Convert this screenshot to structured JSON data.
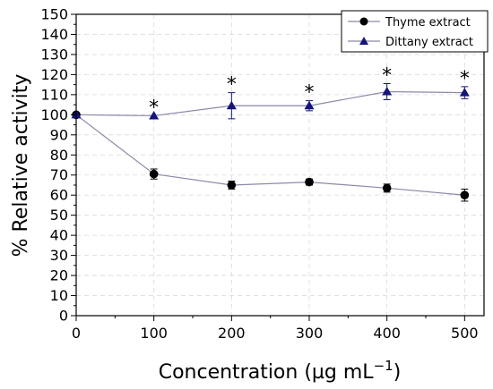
{
  "chart_data": {
    "type": "line",
    "title": "",
    "xlabel": "Concentration (µg mL",
    "xlabel_sup": "−1",
    "xlabel_close": ")",
    "ylabel": "% Relative activity",
    "x": [
      0,
      100,
      200,
      300,
      400,
      500
    ],
    "xlim": [
      0,
      525
    ],
    "ylim": [
      0,
      150
    ],
    "xticks": [
      "0",
      "100",
      "200",
      "300",
      "400",
      "500"
    ],
    "yticks": [
      "0",
      "10",
      "20",
      "30",
      "40",
      "50",
      "60",
      "70",
      "80",
      "90",
      "100",
      "110",
      "120",
      "130",
      "140",
      "150"
    ],
    "grid": true,
    "legend_position": "top-right",
    "series": [
      {
        "name": "Thyme extract",
        "marker": "circle",
        "color": "#000000",
        "line_color": "#8a8aa8",
        "values": [
          100,
          70.5,
          65,
          66.5,
          63.5,
          60
        ],
        "errors": [
          0,
          2.5,
          2,
          1.5,
          2,
          3
        ]
      },
      {
        "name": "Dittany extract",
        "marker": "triangle",
        "color": "#14147a",
        "line_color": "#8a8aa8",
        "values": [
          100,
          99.5,
          104.5,
          104.5,
          111.5,
          111
        ],
        "errors": [
          0,
          0,
          6.5,
          2.5,
          4,
          3
        ]
      }
    ],
    "annotations": [
      {
        "x": 100,
        "text": "*"
      },
      {
        "x": 200,
        "text": "*"
      },
      {
        "x": 300,
        "text": "*"
      },
      {
        "x": 400,
        "text": "*"
      },
      {
        "x": 500,
        "text": "*"
      }
    ]
  }
}
